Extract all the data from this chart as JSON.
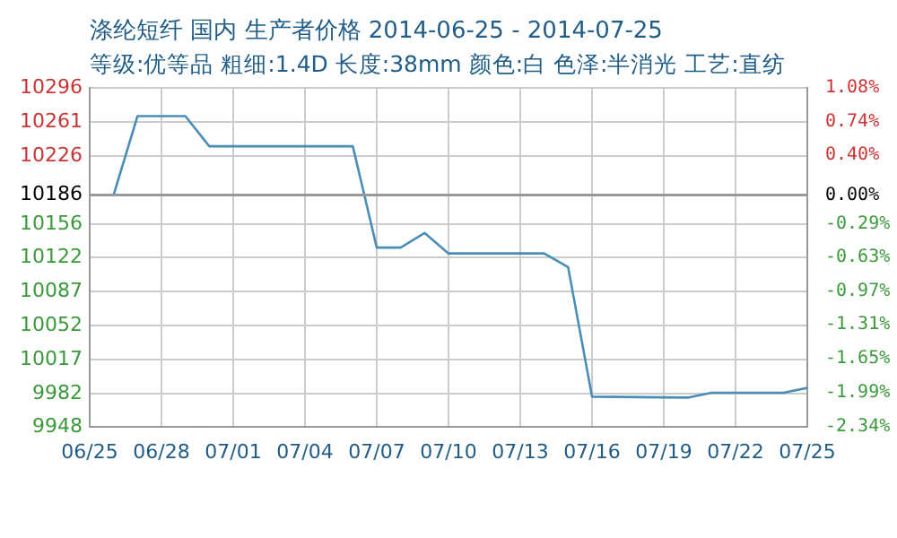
{
  "chart_data": {
    "type": "line",
    "title": "涤纶短纤 国内 生产者价格 2014-06-25 - 2014-07-25",
    "subtitle": "等级:优等品 粗细:1.4D 长度:38mm 颜色:白 色泽:半消光 工艺:直纺",
    "x": [
      "--06-25",
      "--06-26",
      "--06-27",
      "--06-29",
      "--06-30",
      "--07-06",
      "--07-07",
      "--07-08",
      "--07-09",
      "--07-10",
      "--07-14",
      "--07-15",
      "--07-16",
      "--07-20",
      "--07-21",
      "--07-24",
      "--07-25"
    ],
    "series": [
      {
        "color": "#4a8db8",
        "values": [
          10186,
          10186,
          10267,
          10267,
          10236,
          10236,
          10132,
          10132,
          10147,
          10126,
          10126,
          10112,
          9979,
          9978,
          9983,
          9983,
          9988
        ]
      }
    ],
    "xlim": [
      "--06-25",
      "--07-25"
    ],
    "xticks": [
      {
        "value": "--06-25",
        "label": "06/25"
      },
      {
        "value": "--06-28",
        "label": "06/28"
      },
      {
        "value": "--07-01",
        "label": "07/01"
      },
      {
        "value": "--07-04",
        "label": "07/04"
      },
      {
        "value": "--07-07",
        "label": "07/07"
      },
      {
        "value": "--07-10",
        "label": "07/10"
      },
      {
        "value": "--07-13",
        "label": "07/13"
      },
      {
        "value": "--07-16",
        "label": "07/16"
      },
      {
        "value": "--07-19",
        "label": "07/19"
      },
      {
        "value": "--07-22",
        "label": "07/22"
      },
      {
        "value": "--07-25",
        "label": "07/25"
      }
    ],
    "ylim": [
      9948,
      10296
    ],
    "yticks": [
      9948,
      9982,
      10017,
      10052,
      10087,
      10122,
      10156,
      10186,
      10226,
      10261,
      10296
    ],
    "y2lim": [
      -2.34,
      1.08
    ],
    "y2ticks": [
      {
        "value": -2.34,
        "label": "-2.34%"
      },
      {
        "value": -1.99,
        "label": "-1.99%"
      },
      {
        "value": -1.65,
        "label": "-1.65%"
      },
      {
        "value": -1.31,
        "label": "-1.31%"
      },
      {
        "value": -0.97,
        "label": "-0.97%"
      },
      {
        "value": -0.63,
        "label": "-0.63%"
      },
      {
        "value": -0.29,
        "label": "-0.29%"
      },
      {
        "value": 0,
        "label": "0.00%"
      },
      {
        "value": 0.4,
        "label": "0.40%"
      },
      {
        "value": 0.74,
        "label": "0.74%"
      },
      {
        "value": 1.08,
        "label": "1.08%"
      }
    ],
    "ref_lines": [
      {
        "axis": "y",
        "value": 10186,
        "color": "#999999"
      }
    ],
    "grid": true,
    "legend": false,
    "marker": "none",
    "line_style": "solid"
  }
}
